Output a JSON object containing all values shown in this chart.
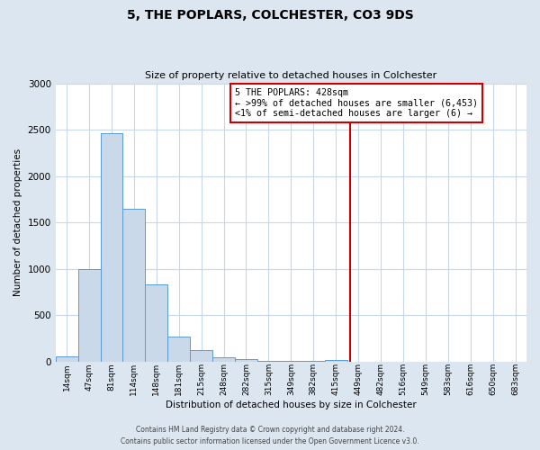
{
  "title": "5, THE POPLARS, COLCHESTER, CO3 9DS",
  "subtitle": "Size of property relative to detached houses in Colchester",
  "xlabel": "Distribution of detached houses by size in Colchester",
  "ylabel": "Number of detached properties",
  "footer_line1": "Contains HM Land Registry data © Crown copyright and database right 2024.",
  "footer_line2": "Contains public sector information licensed under the Open Government Licence v3.0.",
  "bin_labels": [
    "14sqm",
    "47sqm",
    "81sqm",
    "114sqm",
    "148sqm",
    "181sqm",
    "215sqm",
    "248sqm",
    "282sqm",
    "315sqm",
    "349sqm",
    "382sqm",
    "415sqm",
    "449sqm",
    "482sqm",
    "516sqm",
    "549sqm",
    "583sqm",
    "616sqm",
    "650sqm",
    "683sqm"
  ],
  "bar_heights": [
    55,
    1000,
    2460,
    1650,
    835,
    270,
    120,
    45,
    30,
    5,
    5,
    5,
    20,
    0,
    0,
    0,
    0,
    0,
    0,
    0,
    0
  ],
  "bar_color": "#c9d9ea",
  "bar_edge_color": "#5b9bd5",
  "vline_x": 12.65,
  "vline_color": "#cc0000",
  "annotation_title": "5 THE POPLARS: 428sqm",
  "annotation_line1": "← >99% of detached houses are smaller (6,453)",
  "annotation_line2": "<1% of semi-detached houses are larger (6) →",
  "annotation_box_edge": "#cc0000",
  "ylim": [
    0,
    3000
  ],
  "yticks": [
    0,
    500,
    1000,
    1500,
    2000,
    2500,
    3000
  ],
  "fig_background_color": "#dce6f0",
  "plot_background_color": "#ffffff"
}
